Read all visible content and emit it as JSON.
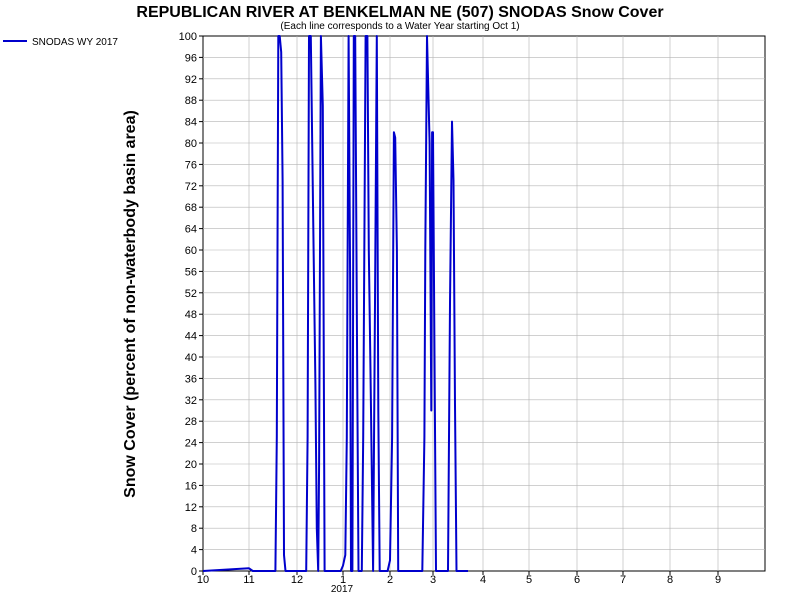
{
  "chart_data": {
    "type": "line",
    "title": "REPUBLICAN RIVER AT BENKELMAN NE (507) SNODAS Snow Cover",
    "subtitle": "(Each line corresponds to a Water Year starting Oct 1)",
    "ylabel": "Snow Cover (percent of non-waterbody basin area)",
    "xlabel": "",
    "x_tick_labels": [
      "10",
      "11",
      "12",
      "1",
      "2",
      "3",
      "4",
      "5",
      "6",
      "7",
      "8",
      "9"
    ],
    "x_year_label": "2017",
    "ylim": [
      0,
      100
    ],
    "y_ticks": [
      0,
      4,
      8,
      12,
      16,
      20,
      24,
      28,
      32,
      36,
      40,
      44,
      48,
      52,
      56,
      60,
      64,
      68,
      72,
      76,
      80,
      84,
      88,
      92,
      96,
      100
    ],
    "grid": true,
    "legend_position": "top-left",
    "series": [
      {
        "name": "SNODAS WY 2017",
        "color": "#0000cc",
        "x_unit": "month index from Oct 1 (0 = Oct 1)",
        "points": [
          [
            0,
            0
          ],
          [
            1.0,
            0.5
          ],
          [
            1.08,
            0
          ],
          [
            1.55,
            0
          ],
          [
            1.58,
            25
          ],
          [
            1.61,
            100
          ],
          [
            1.64,
            100
          ],
          [
            1.67,
            97
          ],
          [
            1.7,
            73
          ],
          [
            1.73,
            3
          ],
          [
            1.76,
            0
          ],
          [
            2.2,
            0
          ],
          [
            2.23,
            25
          ],
          [
            2.26,
            100
          ],
          [
            2.3,
            100
          ],
          [
            2.33,
            80
          ],
          [
            2.36,
            60
          ],
          [
            2.4,
            35
          ],
          [
            2.43,
            8
          ],
          [
            2.46,
            0
          ],
          [
            2.48,
            20
          ],
          [
            2.52,
            100
          ],
          [
            2.56,
            87
          ],
          [
            2.6,
            0
          ],
          [
            2.95,
            0
          ],
          [
            3.0,
            1
          ],
          [
            3.05,
            3
          ],
          [
            3.08,
            25
          ],
          [
            3.12,
            100
          ],
          [
            3.15,
            55
          ],
          [
            3.17,
            0
          ],
          [
            3.2,
            0
          ],
          [
            3.23,
            100
          ],
          [
            3.26,
            100
          ],
          [
            3.3,
            40
          ],
          [
            3.33,
            0
          ],
          [
            3.4,
            0
          ],
          [
            3.43,
            25
          ],
          [
            3.48,
            100
          ],
          [
            3.52,
            100
          ],
          [
            3.55,
            60
          ],
          [
            3.58,
            40
          ],
          [
            3.61,
            20
          ],
          [
            3.64,
            0
          ],
          [
            3.68,
            50
          ],
          [
            3.72,
            100
          ],
          [
            3.75,
            30
          ],
          [
            3.78,
            0
          ],
          [
            3.95,
            0
          ],
          [
            4.0,
            2
          ],
          [
            4.05,
            25
          ],
          [
            4.09,
            82
          ],
          [
            4.12,
            81
          ],
          [
            4.16,
            60
          ],
          [
            4.19,
            0
          ],
          [
            4.75,
            0
          ],
          [
            4.8,
            25
          ],
          [
            4.82,
            60
          ],
          [
            4.86,
            100
          ],
          [
            4.89,
            90
          ],
          [
            4.92,
            80
          ],
          [
            4.96,
            30
          ],
          [
            4.98,
            82
          ],
          [
            5.0,
            82
          ],
          [
            5.03,
            40
          ],
          [
            5.06,
            0
          ],
          [
            5.3,
            0
          ],
          [
            5.34,
            50
          ],
          [
            5.38,
            84
          ],
          [
            5.41,
            73
          ],
          [
            5.44,
            31
          ],
          [
            5.47,
            0
          ],
          [
            5.7,
            0
          ]
        ]
      }
    ]
  }
}
